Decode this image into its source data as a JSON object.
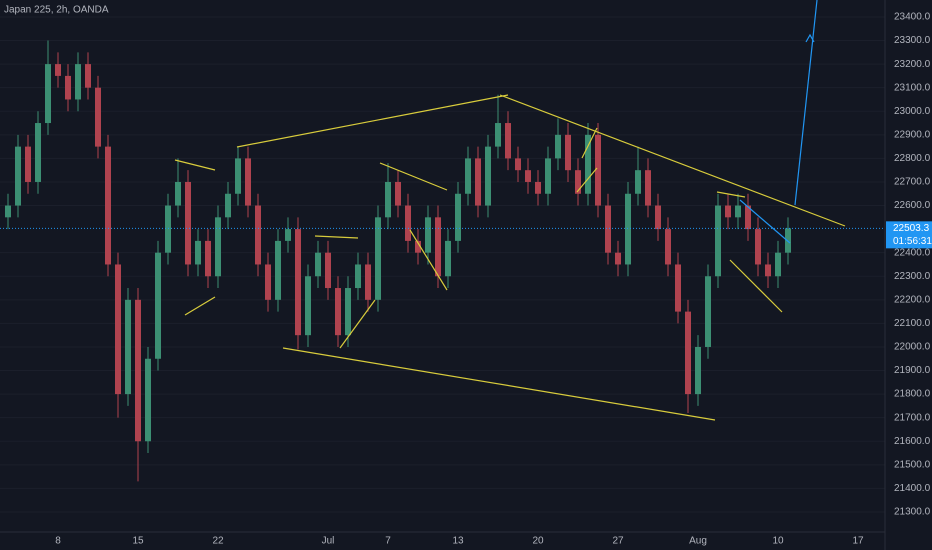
{
  "chart_data": {
    "type": "candlestick",
    "title": "Japan 225, 2h, OANDA",
    "categories": [
      null,
      null,
      null,
      null,
      null,
      "8",
      null,
      null,
      null,
      null,
      null,
      null,
      null,
      "15",
      null,
      null,
      null,
      null,
      null,
      null,
      null,
      "22",
      null,
      null,
      null,
      null,
      null,
      null,
      null,
      null,
      null,
      null,
      "Jul",
      null,
      null,
      null,
      null,
      null,
      "7",
      null,
      null,
      null,
      null,
      null,
      null,
      "13",
      null,
      null,
      null,
      null,
      null,
      null,
      null,
      "20",
      null,
      null,
      null,
      null,
      null,
      null,
      null,
      "27",
      null,
      null,
      null,
      null,
      null,
      null,
      null,
      "Aug",
      null,
      null,
      null,
      null,
      null,
      null,
      null,
      "10",
      null,
      null,
      null,
      null,
      null,
      null,
      null,
      "17"
    ],
    "open": [
      22550,
      22600,
      22850,
      22700,
      22950,
      23200,
      23150,
      23050,
      23200,
      23100,
      22850,
      22350,
      21800,
      22200,
      21600,
      21950,
      22400,
      22600,
      22700,
      22350,
      22450,
      22300,
      22550,
      22650,
      22800,
      22600,
      22350,
      22200,
      22450,
      22500,
      22050,
      22300,
      22400,
      22250,
      22050,
      22250,
      22350,
      22200,
      22550,
      22700,
      22600,
      22450,
      22400,
      22550,
      22300,
      22450,
      22650,
      22800,
      22600,
      22850,
      22950,
      22800,
      22750,
      22700,
      22650,
      22800,
      22900,
      22750,
      22650,
      22900,
      22600,
      22400,
      22350,
      22650,
      22750,
      22600,
      22500,
      22350,
      22150,
      21800,
      22000,
      22300,
      22600,
      22550,
      22600,
      22500,
      22350,
      22300,
      22400,
      null,
      null,
      null,
      null,
      null,
      null,
      null
    ],
    "high": [
      22650,
      22900,
      22900,
      23000,
      23300,
      23250,
      23200,
      23250,
      23250,
      23150,
      22900,
      22400,
      22250,
      22250,
      22000,
      22450,
      22650,
      22800,
      22750,
      22500,
      22500,
      22600,
      22700,
      22850,
      22850,
      22650,
      22400,
      22500,
      22550,
      22550,
      22350,
      22450,
      22450,
      22300,
      22300,
      22400,
      22400,
      22600,
      22780,
      22750,
      22650,
      22500,
      22600,
      22600,
      22500,
      22700,
      22850,
      22850,
      22900,
      23070,
      23000,
      22850,
      22800,
      22750,
      22850,
      22970,
      22950,
      22800,
      22950,
      22950,
      22650,
      22450,
      22700,
      22850,
      22800,
      22650,
      22550,
      22400,
      22200,
      22050,
      22350,
      22650,
      22650,
      22650,
      22650,
      22550,
      22400,
      22450,
      22550,
      null,
      null,
      null,
      null,
      null,
      null,
      null
    ],
    "low": [
      22500,
      22550,
      22650,
      22650,
      22900,
      23100,
      23000,
      23000,
      23050,
      22800,
      22300,
      21700,
      21750,
      21430,
      21550,
      21900,
      22350,
      22550,
      22300,
      22300,
      22250,
      22250,
      22500,
      22600,
      22550,
      22300,
      22150,
      22150,
      22400,
      21990,
      22000,
      22250,
      22200,
      22000,
      22000,
      22200,
      22150,
      22150,
      22500,
      22550,
      22400,
      22350,
      22350,
      22250,
      22250,
      22400,
      22600,
      22550,
      22550,
      22800,
      22750,
      22700,
      22650,
      22600,
      22600,
      22750,
      22700,
      22600,
      22600,
      22550,
      22350,
      22300,
      22300,
      22600,
      22550,
      22450,
      22300,
      22100,
      21720,
      21750,
      21950,
      22250,
      22500,
      22500,
      22450,
      22300,
      22250,
      22250,
      22350,
      null,
      null,
      null,
      null,
      null,
      null,
      null
    ],
    "close": [
      22600,
      22850,
      22700,
      22950,
      23200,
      23150,
      23050,
      23200,
      23100,
      22850,
      22350,
      21800,
      22200,
      21600,
      21950,
      22400,
      22600,
      22700,
      22350,
      22450,
      22300,
      22550,
      22650,
      22800,
      22600,
      22350,
      22200,
      22450,
      22500,
      22050,
      22300,
      22400,
      22250,
      22050,
      22250,
      22350,
      22200,
      22550,
      22700,
      22600,
      22450,
      22400,
      22550,
      22300,
      22450,
      22650,
      22800,
      22600,
      22850,
      22950,
      22800,
      22750,
      22700,
      22650,
      22800,
      22900,
      22750,
      22650,
      22900,
      22600,
      22400,
      22350,
      22650,
      22750,
      22600,
      22500,
      22350,
      22150,
      21800,
      22000,
      22300,
      22600,
      22550,
      22600,
      22500,
      22350,
      22300,
      22400,
      22503.3,
      null,
      null,
      null,
      null,
      null,
      null,
      null
    ],
    "up_color": "#3c8f73",
    "down_color": "#b0434f",
    "last_price": 22503.3,
    "countdown": "01:56:31",
    "ylim": [
      21215,
      23472
    ],
    "yticks": [
      {
        "value": 21300,
        "label": "21300.0"
      },
      {
        "value": 21400,
        "label": "21400.0"
      },
      {
        "value": 21500,
        "label": "21500.0"
      },
      {
        "value": 21600,
        "label": "21600.0"
      },
      {
        "value": 21700,
        "label": "21700.0"
      },
      {
        "value": 21800,
        "label": "21800.0"
      },
      {
        "value": 21900,
        "label": "21900.0"
      },
      {
        "value": 22000,
        "label": "22000.0"
      },
      {
        "value": 22100,
        "label": "22100.0"
      },
      {
        "value": 22200,
        "label": "22200.0"
      },
      {
        "value": 22300,
        "label": "22300.0"
      },
      {
        "value": 22400,
        "label": "22400.0"
      },
      {
        "value": 22600,
        "label": "22600.0"
      },
      {
        "value": 22700,
        "label": "22700.0"
      },
      {
        "value": 22800,
        "label": "22800.0"
      },
      {
        "value": 22900,
        "label": "22900.0"
      },
      {
        "value": 23000,
        "label": "23000.0"
      },
      {
        "value": 23100,
        "label": "23100.0"
      },
      {
        "value": 23200,
        "label": "23200.0"
      },
      {
        "value": 23300,
        "label": "23300.0"
      },
      {
        "value": 23400,
        "label": "23400.0"
      }
    ],
    "grid": true
  }
}
